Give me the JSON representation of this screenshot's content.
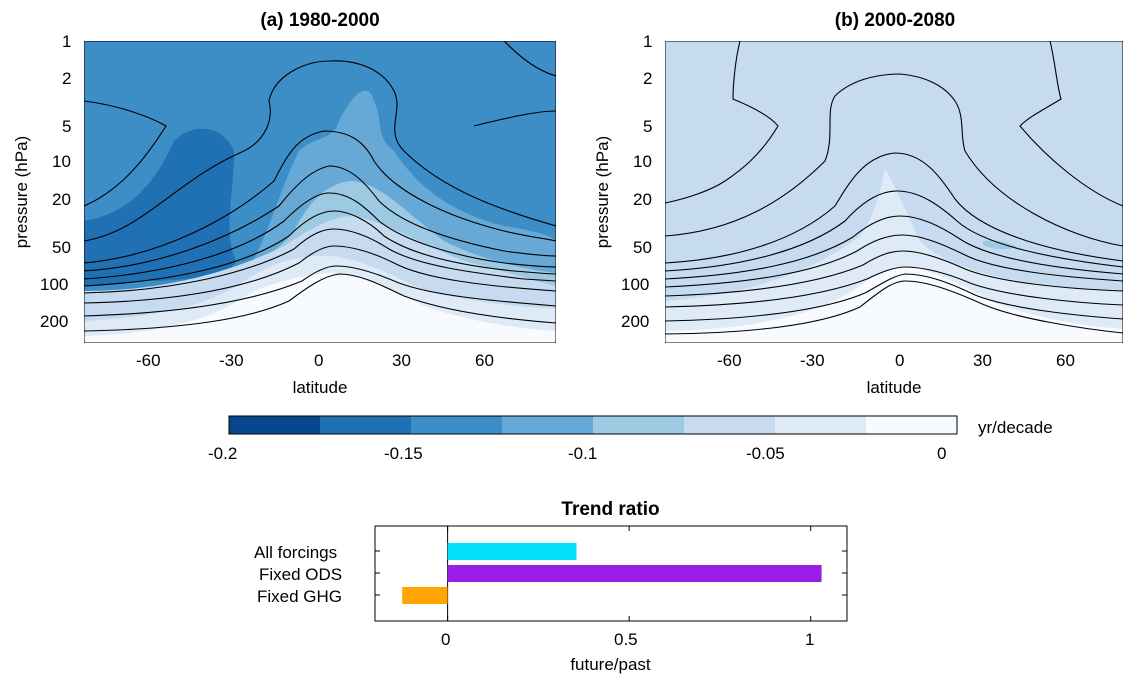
{
  "panels": [
    {
      "title": "(a) 1980-2000",
      "xlabel": "latitude",
      "ylabel": "pressure (hPa)",
      "xticks": [
        "-60",
        "-30",
        "0",
        "30",
        "60"
      ],
      "yticks": [
        "1",
        "2",
        "5",
        "10",
        "20",
        "50",
        "100",
        "200"
      ]
    },
    {
      "title": "(b) 2000-2080",
      "xlabel": "latitude",
      "ylabel": "pressure (hPa)",
      "xticks": [
        "-60",
        "-30",
        "0",
        "30",
        "60"
      ],
      "yticks": [
        "1",
        "2",
        "5",
        "10",
        "20",
        "50",
        "100",
        "200"
      ]
    }
  ],
  "colorbar": {
    "unit": "yr/decade",
    "ticks": [
      "-0.2",
      "-0.15",
      "-0.1",
      "-0.05",
      "0"
    ],
    "levels": [
      -0.2,
      -0.175,
      -0.15,
      -0.125,
      -0.1,
      -0.075,
      -0.05,
      -0.025,
      0
    ],
    "colors": [
      "#08468f",
      "#2070b4",
      "#3d8ec6",
      "#67a9d6",
      "#9ec9e2",
      "#c6dbef",
      "#deebf7",
      "#f7fbff"
    ]
  },
  "chart_data": [
    {
      "type": "heatmap",
      "title": "(a) 1980-2000",
      "xlabel": "latitude",
      "ylabel": "pressure (hPa)",
      "xlim": [
        -85,
        85
      ],
      "ylim": [
        1,
        300
      ],
      "yscale": "log",
      "colorbar_label": "yr/decade",
      "colorbar_range": [
        -0.2,
        0
      ]
    },
    {
      "type": "heatmap",
      "title": "(b) 2000-2080",
      "xlabel": "latitude",
      "ylabel": "pressure (hPa)",
      "xlim": [
        -85,
        85
      ],
      "ylim": [
        1,
        300
      ],
      "yscale": "log",
      "colorbar_label": "yr/decade",
      "colorbar_range": [
        -0.2,
        0
      ]
    },
    {
      "type": "bar",
      "orientation": "horizontal",
      "title": "Trend ratio",
      "xlabel": "future/past",
      "categories": [
        "All forcings",
        "Fixed ODS",
        "Fixed GHG"
      ],
      "values": [
        0.355,
        1.03,
        -0.125
      ],
      "colors": [
        "#00e0f8",
        "#9a1ee6",
        "#ffa500"
      ],
      "xlim": [
        -0.2,
        1.1
      ],
      "xticks": [
        "0",
        "0.5",
        "1"
      ]
    }
  ]
}
